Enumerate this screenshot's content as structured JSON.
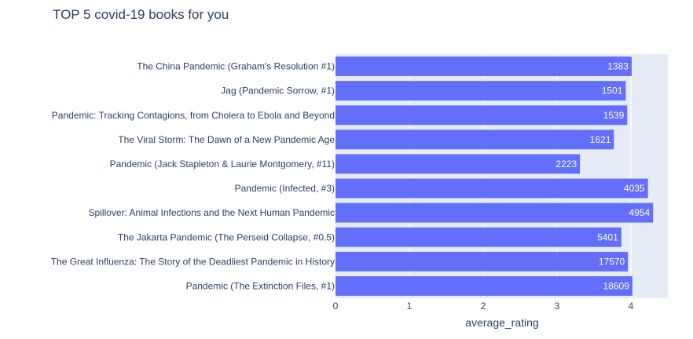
{
  "chart_data": {
    "type": "bar",
    "orientation": "horizontal",
    "title": "TOP 5 covid-19 books for you",
    "xlabel": "average_rating",
    "ylabel": "",
    "xlim": [
      0,
      4.5
    ],
    "xticks": [
      0,
      1,
      2,
      3,
      4
    ],
    "grid": true,
    "legend": "none",
    "colors": {
      "bar": "#636efa",
      "plot_bg": "#e5ecf6",
      "grid": "#ffffff",
      "text": "#2a3f5f",
      "bar_label": "#ffffff"
    },
    "categories": [
      "The China Pandemic (Graham's Resolution #1)",
      "Jag (Pandemic Sorrow, #1)",
      "Pandemic: Tracking Contagions, from Cholera to Ebola and Beyond",
      "The Viral Storm: The Dawn of a New Pandemic Age",
      "Pandemic (Jack Stapleton & Laurie Montgomery, #11)",
      "Pandemic (Infected, #3)",
      "Spillover: Animal Infections and the Next Human Pandemic",
      "The Jakarta Pandemic (The Perseid Collapse, #0.5)",
      "The Great Influenza: The Story of the Deadliest Pandemic in History",
      "Pandemic (The Extinction Files, #1)"
    ],
    "values": [
      4.01,
      3.93,
      3.95,
      3.77,
      3.31,
      4.23,
      4.3,
      3.87,
      3.96,
      4.02
    ],
    "bar_labels": [
      "1383",
      "1501",
      "1539",
      "1621",
      "2223",
      "4035",
      "4954",
      "5401",
      "17570",
      "18609"
    ]
  }
}
